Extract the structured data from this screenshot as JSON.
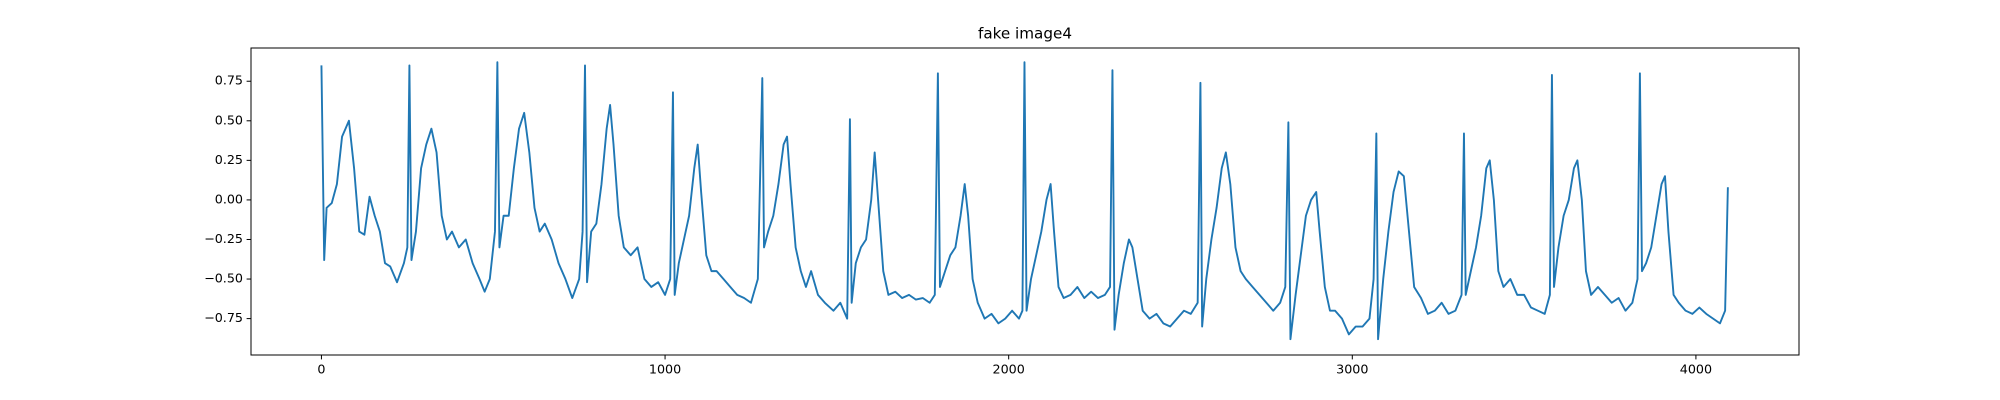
{
  "chart_data": {
    "type": "line",
    "title": "fake image4",
    "color": "#1f77b4",
    "x": [
      0,
      8,
      15,
      30,
      45,
      60,
      70,
      80,
      95,
      110,
      125,
      140,
      155,
      170,
      185,
      200,
      220,
      240,
      250,
      256,
      262,
      275,
      290,
      305,
      320,
      335,
      350,
      365,
      380,
      400,
      420,
      440,
      460,
      475,
      490,
      505,
      512,
      518,
      530,
      545,
      560,
      575,
      590,
      605,
      620,
      635,
      650,
      670,
      690,
      710,
      730,
      750,
      760,
      767,
      773,
      785,
      800,
      815,
      830,
      840,
      850,
      865,
      880,
      900,
      920,
      940,
      960,
      980,
      1000,
      1015,
      1023,
      1028,
      1040,
      1055,
      1070,
      1085,
      1095,
      1105,
      1120,
      1135,
      1150,
      1170,
      1190,
      1210,
      1230,
      1250,
      1270,
      1283,
      1288,
      1300,
      1315,
      1330,
      1345,
      1355,
      1365,
      1380,
      1395,
      1410,
      1425,
      1445,
      1465,
      1490,
      1510,
      1530,
      1538,
      1543,
      1555,
      1570,
      1585,
      1600,
      1610,
      1620,
      1635,
      1650,
      1670,
      1690,
      1710,
      1730,
      1750,
      1770,
      1785,
      1794,
      1800,
      1815,
      1830,
      1845,
      1860,
      1872,
      1882,
      1895,
      1910,
      1930,
      1950,
      1970,
      1990,
      2010,
      2030,
      2040,
      2046,
      2052,
      2065,
      2080,
      2095,
      2110,
      2122,
      2132,
      2145,
      2160,
      2180,
      2200,
      2220,
      2240,
      2260,
      2280,
      2295,
      2302,
      2308,
      2320,
      2335,
      2350,
      2360,
      2375,
      2390,
      2410,
      2430,
      2450,
      2470,
      2490,
      2510,
      2530,
      2550,
      2558,
      2563,
      2575,
      2590,
      2605,
      2620,
      2632,
      2645,
      2660,
      2675,
      2690,
      2710,
      2730,
      2750,
      2770,
      2790,
      2805,
      2814,
      2820,
      2835,
      2850,
      2865,
      2880,
      2895,
      2905,
      2920,
      2935,
      2950,
      2970,
      2990,
      3010,
      3030,
      3050,
      3062,
      3070,
      3075,
      3090,
      3105,
      3120,
      3135,
      3150,
      3165,
      3180,
      3200,
      3220,
      3240,
      3260,
      3280,
      3300,
      3318,
      3325,
      3330,
      3345,
      3360,
      3375,
      3390,
      3400,
      3412,
      3425,
      3440,
      3460,
      3480,
      3500,
      3520,
      3540,
      3560,
      3575,
      3581,
      3587,
      3600,
      3615,
      3630,
      3645,
      3655,
      3668,
      3680,
      3695,
      3715,
      3735,
      3755,
      3775,
      3795,
      3815,
      3830,
      3837,
      3843,
      3855,
      3870,
      3885,
      3900,
      3910,
      3920,
      3935,
      3950,
      3970,
      3990,
      4010,
      4030,
      4050,
      4070,
      4085,
      4093
    ],
    "values": [
      0.85,
      -0.38,
      -0.05,
      -0.02,
      0.1,
      0.4,
      0.45,
      0.5,
      0.2,
      -0.2,
      -0.22,
      0.02,
      -0.1,
      -0.2,
      -0.4,
      -0.42,
      -0.52,
      -0.4,
      -0.3,
      0.85,
      -0.38,
      -0.2,
      0.2,
      0.35,
      0.45,
      0.3,
      -0.1,
      -0.25,
      -0.2,
      -0.3,
      -0.25,
      -0.4,
      -0.5,
      -0.58,
      -0.5,
      -0.2,
      0.87,
      -0.3,
      -0.1,
      -0.1,
      0.2,
      0.45,
      0.55,
      0.3,
      -0.05,
      -0.2,
      -0.15,
      -0.25,
      -0.4,
      -0.5,
      -0.62,
      -0.5,
      -0.2,
      0.85,
      -0.52,
      -0.2,
      -0.15,
      0.1,
      0.45,
      0.6,
      0.35,
      -0.1,
      -0.3,
      -0.35,
      -0.3,
      -0.5,
      -0.55,
      -0.52,
      -0.6,
      -0.5,
      0.68,
      -0.6,
      -0.4,
      -0.25,
      -0.1,
      0.2,
      0.35,
      0.05,
      -0.35,
      -0.45,
      -0.45,
      -0.5,
      -0.55,
      -0.6,
      -0.62,
      -0.65,
      -0.5,
      0.77,
      -0.3,
      -0.2,
      -0.1,
      0.1,
      0.35,
      0.4,
      0.1,
      -0.3,
      -0.45,
      -0.55,
      -0.45,
      -0.6,
      -0.65,
      -0.7,
      -0.65,
      -0.75,
      0.51,
      -0.65,
      -0.4,
      -0.3,
      -0.25,
      0.0,
      0.3,
      0.0,
      -0.45,
      -0.6,
      -0.58,
      -0.62,
      -0.6,
      -0.63,
      -0.62,
      -0.65,
      -0.6,
      0.8,
      -0.55,
      -0.45,
      -0.35,
      -0.3,
      -0.1,
      0.1,
      -0.1,
      -0.5,
      -0.65,
      -0.75,
      -0.72,
      -0.78,
      -0.75,
      -0.7,
      -0.75,
      -0.7,
      0.87,
      -0.7,
      -0.5,
      -0.35,
      -0.2,
      0.0,
      0.1,
      -0.2,
      -0.55,
      -0.62,
      -0.6,
      -0.55,
      -0.62,
      -0.58,
      -0.62,
      -0.6,
      -0.55,
      0.82,
      -0.82,
      -0.6,
      -0.4,
      -0.25,
      -0.3,
      -0.5,
      -0.7,
      -0.75,
      -0.72,
      -0.78,
      -0.8,
      -0.75,
      -0.7,
      -0.72,
      -0.65,
      0.74,
      -0.8,
      -0.5,
      -0.25,
      -0.05,
      0.2,
      0.3,
      0.1,
      -0.3,
      -0.45,
      -0.5,
      -0.55,
      -0.6,
      -0.65,
      -0.7,
      -0.65,
      -0.55,
      0.49,
      -0.88,
      -0.6,
      -0.35,
      -0.1,
      0.0,
      0.05,
      -0.2,
      -0.55,
      -0.7,
      -0.7,
      -0.75,
      -0.85,
      -0.8,
      -0.8,
      -0.75,
      -0.5,
      0.42,
      -0.88,
      -0.5,
      -0.2,
      0.05,
      0.18,
      0.15,
      -0.2,
      -0.55,
      -0.62,
      -0.72,
      -0.7,
      -0.65,
      -0.72,
      -0.7,
      -0.6,
      0.42,
      -0.6,
      -0.45,
      -0.3,
      -0.1,
      0.2,
      0.25,
      0.0,
      -0.45,
      -0.55,
      -0.5,
      -0.6,
      -0.6,
      -0.68,
      -0.7,
      -0.72,
      -0.6,
      0.79,
      -0.55,
      -0.3,
      -0.1,
      0.0,
      0.2,
      0.25,
      0.0,
      -0.45,
      -0.6,
      -0.55,
      -0.6,
      -0.65,
      -0.62,
      -0.7,
      -0.65,
      -0.5,
      0.8,
      -0.45,
      -0.4,
      -0.3,
      -0.1,
      0.1,
      0.15,
      -0.2,
      -0.6,
      -0.65,
      -0.7,
      -0.72,
      -0.68,
      -0.72,
      -0.75,
      -0.78,
      -0.7,
      0.08
    ],
    "xlim": [
      -205,
      4300
    ],
    "xticks": [
      0,
      1000,
      2000,
      3000,
      4000
    ],
    "ylim": [
      -0.98,
      0.96
    ],
    "yticks": [
      {
        "value": -0.75,
        "label": "−0.75"
      },
      {
        "value": -0.5,
        "label": "−0.50"
      },
      {
        "value": -0.25,
        "label": "−0.25"
      },
      {
        "value": 0,
        "label": "0.00"
      },
      0.25,
      {
        "value": 0.5,
        "label": "0.50"
      },
      0.75
    ],
    "grid": false
  }
}
